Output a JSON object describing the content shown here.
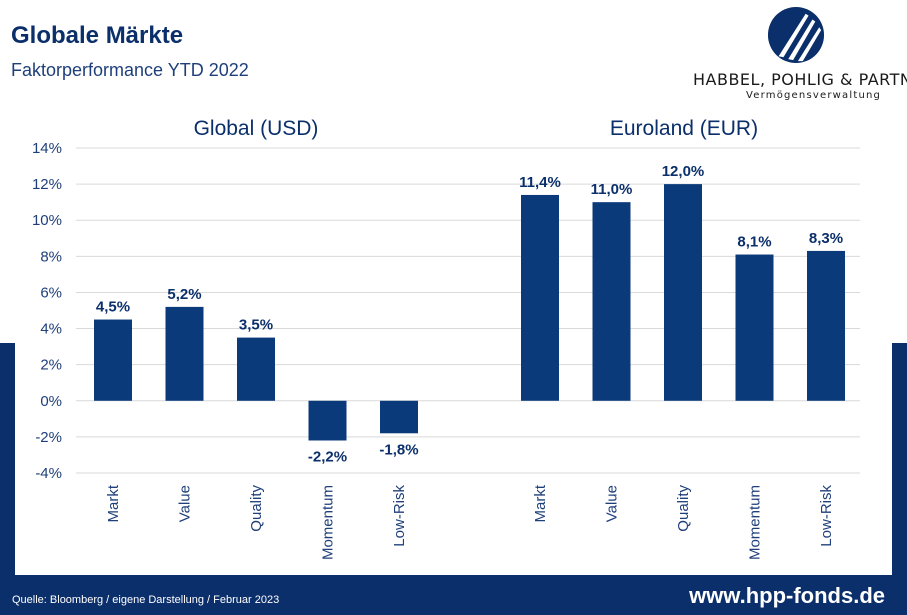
{
  "header": {
    "title": "Globale Märkte",
    "subtitle": "Faktorperformance YTD 2022"
  },
  "logo": {
    "name": "HABBEL, POHLIG & PARTNER",
    "tagline": "Vermögensverwaltung",
    "icon": "hpp-emblem-icon"
  },
  "footer": {
    "source": "Quelle: Bloomberg / eigene Darstellung / Februar 2023",
    "url": "www.hpp-fonds.de"
  },
  "colors": {
    "brand_navy": "#0b2f6b",
    "bar": "#0b3a7b",
    "gridline": "#d9d9d9"
  },
  "chart_data": {
    "type": "bar",
    "ylim": [
      -4,
      14
    ],
    "ytick_step": 2,
    "ytick_labels": [
      "14%",
      "12%",
      "10%",
      "8%",
      "6%",
      "4%",
      "2%",
      "0%",
      "-2%",
      "-4%"
    ],
    "grid": true,
    "legend": "none",
    "groups": [
      {
        "name": "Global (USD)",
        "categories": [
          "Markt",
          "Value",
          "Quality",
          "Momentum",
          "Low-Risk"
        ],
        "values": [
          4.5,
          5.2,
          3.5,
          -2.2,
          -1.8
        ],
        "labels": [
          "4,5%",
          "5,2%",
          "3,5%",
          "-2,2%",
          "-1,8%"
        ]
      },
      {
        "name": "Euroland (EUR)",
        "categories": [
          "Markt",
          "Value",
          "Quality",
          "Momentum",
          "Low-Risk"
        ],
        "values": [
          11.4,
          11.0,
          12.0,
          8.1,
          8.3
        ],
        "labels": [
          "11,4%",
          "11,0%",
          "12,0%",
          "8,1%",
          "8,3%"
        ]
      }
    ]
  }
}
